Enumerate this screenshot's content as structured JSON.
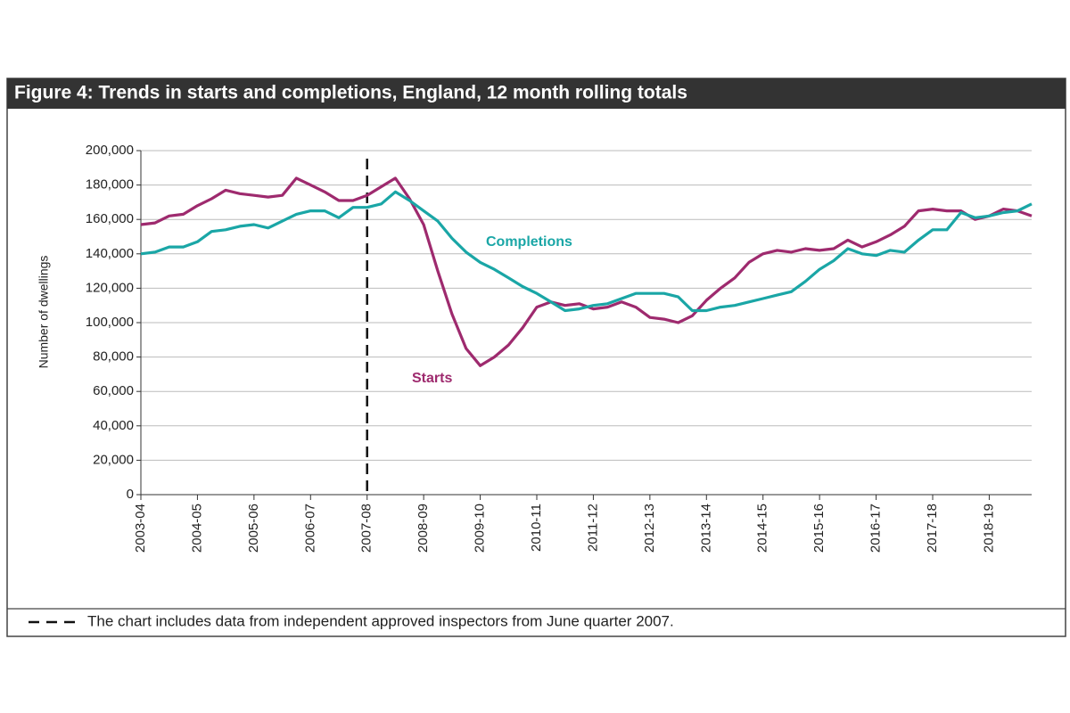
{
  "chart_data": {
    "type": "line",
    "title": "Figure 4: Trends in starts and completions, England, 12 month rolling totals",
    "ylabel": "Number  of dwellings",
    "categories": [
      "2003-04",
      null,
      null,
      null,
      "2004-05",
      null,
      null,
      null,
      "2005-06",
      null,
      null,
      null,
      "2006-07",
      null,
      null,
      null,
      "2007-08",
      null,
      null,
      null,
      "2008-09",
      null,
      null,
      null,
      "2009-10",
      null,
      null,
      null,
      "2010-11",
      null,
      null,
      null,
      "2011-12",
      null,
      null,
      null,
      "2012-13",
      null,
      null,
      null,
      "2013-14",
      null,
      null,
      null,
      "2014-15",
      null,
      null,
      null,
      "2015-16",
      null,
      null,
      null,
      "2016-17",
      null,
      null,
      null,
      "2017-18",
      null,
      null,
      null,
      "2018-19",
      null,
      null,
      null
    ],
    "series": [
      {
        "name": "Starts",
        "color": "#9e2a6e",
        "values": [
          157000,
          158000,
          162000,
          163000,
          168000,
          172000,
          177000,
          175000,
          174000,
          173000,
          174000,
          184000,
          180000,
          176000,
          171000,
          171000,
          174000,
          179000,
          184000,
          172000,
          157000,
          130000,
          105000,
          85000,
          75000,
          80000,
          87000,
          97000,
          109000,
          112000,
          110000,
          111000,
          108000,
          109000,
          112000,
          109000,
          103000,
          102000,
          100000,
          104000,
          113000,
          120000,
          126000,
          135000,
          140000,
          142000,
          141000,
          143000,
          142000,
          143000,
          148000,
          144000,
          147000,
          151000,
          156000,
          165000,
          166000,
          165000,
          165000,
          160000,
          162000,
          166000,
          165000,
          162000
        ]
      },
      {
        "name": "Completions",
        "color": "#1aa6a6",
        "values": [
          140000,
          141000,
          144000,
          144000,
          147000,
          153000,
          154000,
          156000,
          157000,
          155000,
          159000,
          163000,
          165000,
          165000,
          161000,
          167000,
          167000,
          169000,
          176000,
          171000,
          165000,
          159000,
          149000,
          141000,
          135000,
          131000,
          126000,
          121000,
          117000,
          112000,
          107000,
          108000,
          110000,
          111000,
          114000,
          117000,
          117000,
          117000,
          115000,
          107000,
          107000,
          109000,
          110000,
          112000,
          114000,
          116000,
          118000,
          124000,
          131000,
          136000,
          143000,
          140000,
          139000,
          142000,
          141000,
          148000,
          154000,
          154000,
          164000,
          161000,
          162000,
          164000,
          165000,
          169000
        ]
      }
    ],
    "ylim": [
      0,
      200000
    ],
    "yticks": [
      0,
      {
        "value": 20000,
        "label": "20,000"
      },
      {
        "value": 40000,
        "label": "40,000"
      },
      {
        "value": 60000,
        "label": "60,000"
      },
      {
        "value": 80000,
        "label": "80,000"
      },
      {
        "value": 100000,
        "label": "100,000"
      },
      {
        "value": 120000,
        "label": "120,000"
      },
      {
        "value": 140000,
        "label": "140,000"
      },
      {
        "value": 160000,
        "label": "160,000"
      },
      {
        "value": 180000,
        "label": "180,000"
      },
      {
        "value": 200000,
        "label": "200,000"
      }
    ],
    "grid": true,
    "reference_line": {
      "category_index": 16,
      "style": "dashed"
    },
    "note": "The chart includes data from independent approved inspectors from June quarter 2007."
  }
}
